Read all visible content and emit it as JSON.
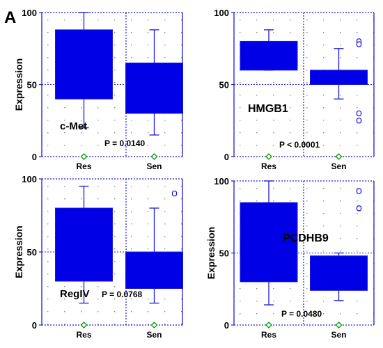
{
  "figure": {
    "panel_letter": "A"
  },
  "colors": {
    "box_fill": "#0000e6",
    "frame": "#1a1adc",
    "grid_dots": "#8c8c8c",
    "outlier": "#1a1adc",
    "zero_marker": "#009900"
  },
  "chart_data": [
    {
      "type": "box",
      "label": "c-Met",
      "p_value": "P = 0.0140",
      "ylabel": "Expression",
      "ylim": [
        0,
        100
      ],
      "yticks": [
        0,
        50,
        100
      ],
      "categories": [
        "Res",
        "Sen"
      ],
      "boxes": [
        {
          "category": "Res",
          "whisker_low": 20,
          "q1": 40,
          "q3": 88,
          "whisker_high": 100,
          "outliers": []
        },
        {
          "category": "Sen",
          "whisker_low": 15,
          "q1": 30,
          "q3": 65,
          "whisker_high": 88,
          "outliers": []
        }
      ]
    },
    {
      "type": "box",
      "label": "HMGB1",
      "p_value": "P < 0.0001",
      "ylabel": "",
      "ylim": [
        0,
        100
      ],
      "yticks": [
        0,
        50,
        100
      ],
      "categories": [
        "Res",
        "Sen"
      ],
      "boxes": [
        {
          "category": "Res",
          "whisker_low": 60,
          "q1": 60,
          "q3": 80,
          "whisker_high": 88,
          "outliers": []
        },
        {
          "category": "Sen",
          "whisker_low": 40,
          "q1": 50,
          "q3": 60,
          "whisker_high": 75,
          "outliers": [
            80,
            78,
            30,
            25
          ]
        }
      ]
    },
    {
      "type": "box",
      "label": "RegIV",
      "p_value": "P = 0.0768",
      "ylabel": "Expression",
      "ylim": [
        0,
        100
      ],
      "yticks": [
        0,
        50,
        100
      ],
      "categories": [
        "Res",
        "Sen"
      ],
      "boxes": [
        {
          "category": "Res",
          "whisker_low": 15,
          "q1": 30,
          "q3": 80,
          "whisker_high": 95,
          "outliers": []
        },
        {
          "category": "Sen",
          "whisker_low": 15,
          "q1": 25,
          "q3": 50,
          "whisker_high": 80,
          "outliers": [
            90
          ]
        }
      ]
    },
    {
      "type": "box",
      "label": "PCDHB9",
      "p_value": "P = 0.0480",
      "ylabel": "Expression",
      "ylim": [
        0,
        100
      ],
      "yticks": [
        0,
        50,
        100
      ],
      "categories": [
        "Res",
        "Sen"
      ],
      "boxes": [
        {
          "category": "Res",
          "whisker_low": 14,
          "q1": 30,
          "q3": 85,
          "whisker_high": 100,
          "outliers": []
        },
        {
          "category": "Sen",
          "whisker_low": 17,
          "q1": 24,
          "q3": 48,
          "whisker_high": 50,
          "outliers": [
            93,
            81
          ]
        }
      ]
    }
  ]
}
